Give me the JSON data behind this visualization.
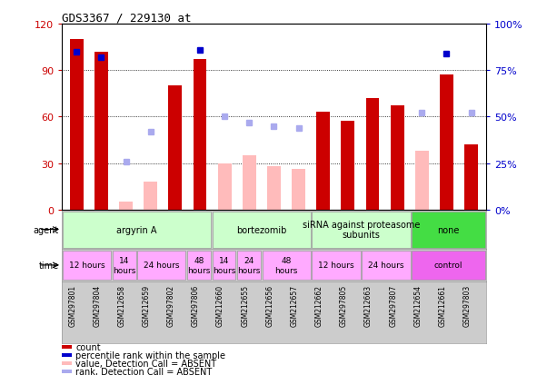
{
  "title": "GDS3367 / 229130_at",
  "samples": [
    "GSM297801",
    "GSM297804",
    "GSM212658",
    "GSM212659",
    "GSM297802",
    "GSM297806",
    "GSM212660",
    "GSM212655",
    "GSM212656",
    "GSM212657",
    "GSM212662",
    "GSM297805",
    "GSM212663",
    "GSM297807",
    "GSM212654",
    "GSM212661",
    "GSM297803"
  ],
  "counts": [
    110,
    102,
    null,
    null,
    80,
    97,
    null,
    null,
    null,
    null,
    63,
    57,
    72,
    67,
    null,
    87,
    42
  ],
  "counts_absent": [
    null,
    null,
    5,
    18,
    null,
    null,
    30,
    35,
    28,
    26,
    null,
    null,
    null,
    null,
    38,
    null,
    null
  ],
  "pct_rank": [
    85,
    82,
    null,
    null,
    null,
    86,
    null,
    null,
    null,
    null,
    null,
    null,
    null,
    null,
    null,
    84,
    null
  ],
  "pct_rank_absent": [
    null,
    null,
    26,
    42,
    null,
    null,
    50,
    47,
    45,
    44,
    null,
    null,
    null,
    null,
    52,
    null,
    52
  ],
  "ylim_left": [
    0,
    120
  ],
  "ylim_right": [
    0,
    100
  ],
  "yticks_left": [
    0,
    30,
    60,
    90,
    120
  ],
  "yticks_right": [
    0,
    25,
    50,
    75,
    100
  ],
  "ytick_labels_left": [
    "0",
    "30",
    "60",
    "90",
    "120"
  ],
  "ytick_labels_right": [
    "0%",
    "25%",
    "50%",
    "75%",
    "100%"
  ],
  "bar_color_present": "#cc0000",
  "bar_color_absent": "#ffbbbb",
  "dot_color_present": "#0000cc",
  "dot_color_absent": "#aaaaee",
  "agent_groups": [
    {
      "label": "argyrin A",
      "start": 0,
      "end": 6,
      "color": "#ccffcc"
    },
    {
      "label": "bortezomib",
      "start": 6,
      "end": 10,
      "color": "#ccffcc"
    },
    {
      "label": "siRNA against proteasome\nsubunits",
      "start": 10,
      "end": 14,
      "color": "#ccffcc"
    },
    {
      "label": "none",
      "start": 14,
      "end": 17,
      "color": "#44dd44"
    }
  ],
  "time_groups": [
    {
      "label": "12 hours",
      "start": 0,
      "end": 2,
      "color": "#ffaaff"
    },
    {
      "label": "14\nhours",
      "start": 2,
      "end": 3,
      "color": "#ffaaff"
    },
    {
      "label": "24 hours",
      "start": 3,
      "end": 5,
      "color": "#ffaaff"
    },
    {
      "label": "48\nhours",
      "start": 5,
      "end": 6,
      "color": "#ffaaff"
    },
    {
      "label": "14\nhours",
      "start": 6,
      "end": 7,
      "color": "#ffaaff"
    },
    {
      "label": "24\nhours",
      "start": 7,
      "end": 8,
      "color": "#ffaaff"
    },
    {
      "label": "48\nhours",
      "start": 8,
      "end": 10,
      "color": "#ffaaff"
    },
    {
      "label": "12 hours",
      "start": 10,
      "end": 12,
      "color": "#ffaaff"
    },
    {
      "label": "24 hours",
      "start": 12,
      "end": 14,
      "color": "#ffaaff"
    },
    {
      "label": "control",
      "start": 14,
      "end": 17,
      "color": "#ee66ee"
    }
  ],
  "legend_items": [
    {
      "label": "count",
      "color": "#cc0000",
      "marker": "s"
    },
    {
      "label": "percentile rank within the sample",
      "color": "#0000cc",
      "marker": "s"
    },
    {
      "label": "value, Detection Call = ABSENT",
      "color": "#ffbbbb",
      "marker": "s"
    },
    {
      "label": "rank, Detection Call = ABSENT",
      "color": "#aaaaee",
      "marker": "s"
    }
  ],
  "bg_color": "#ffffff",
  "plot_bg": "#ffffff",
  "label_row_bg": "#cccccc"
}
